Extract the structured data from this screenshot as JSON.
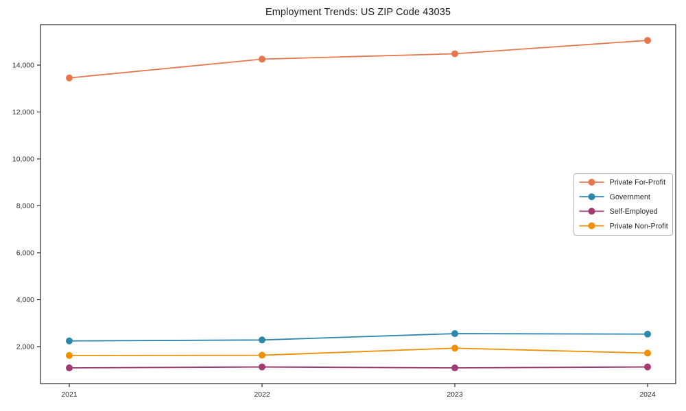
{
  "title": "Employment Trends: US ZIP Code 43035",
  "colors": {
    "for_profit": "#E8764D",
    "government": "#2E86AB",
    "self_employed": "#A23B72",
    "non_profit": "#F18F01",
    "axis": "#000000",
    "tick_text": "#262626",
    "legend_border": "#b3b3b3",
    "legend_bg": "#ffffff"
  },
  "chart_data": {
    "type": "line",
    "title": "Employment Trends: US ZIP Code 43035",
    "x": [
      2021,
      2022,
      2023,
      2024
    ],
    "x_tick_labels": [
      "2021",
      "2022",
      "2023",
      "2024"
    ],
    "y_ticks": [
      2000,
      4000,
      6000,
      8000,
      10000,
      12000,
      14000
    ],
    "y_tick_labels": [
      "2,000",
      "4,000",
      "6,000",
      "8,000",
      "10,000",
      "12,000",
      "14,000"
    ],
    "ylim": [
      420,
      15720
    ],
    "grid": false,
    "legend_position": "right",
    "series": [
      {
        "name": "Private For-Profit",
        "color_key": "for_profit",
        "values": [
          13450,
          14250,
          14480,
          15050
        ]
      },
      {
        "name": "Government",
        "color_key": "government",
        "values": [
          2240,
          2280,
          2550,
          2530
        ]
      },
      {
        "name": "Self-Employed",
        "color_key": "self_employed",
        "values": [
          1090,
          1130,
          1090,
          1130
        ]
      },
      {
        "name": "Private Non-Profit",
        "color_key": "non_profit",
        "values": [
          1620,
          1630,
          1930,
          1720
        ]
      }
    ]
  }
}
